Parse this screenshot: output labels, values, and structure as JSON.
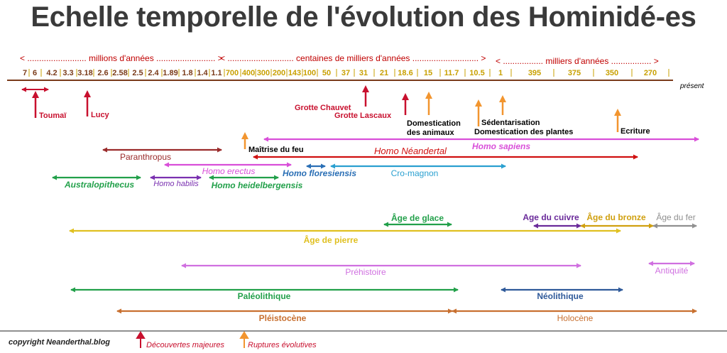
{
  "title": "Echelle temporelle de l'évolution des Hominidé-es",
  "scale_headers": [
    {
      "text": "< ......................... millions d'années ......................... >",
      "color": "#c00000"
    },
    {
      "text": "< ............................ centaines de milliers d'années ............................ >",
      "color": "#c00000"
    },
    {
      "text": "< ................. milliers d'années ................. >",
      "color": "#c00000"
    }
  ],
  "ticks_millions": [
    "7",
    "6",
    "4.2",
    "3.3",
    "3.18",
    "2.6",
    "2.58",
    "2.5",
    "2.4",
    "1.89",
    "1.8",
    "1.4",
    "1.1"
  ],
  "ticks_hundreds_thousands": [
    "700",
    "400",
    "300",
    "200",
    "143",
    "100",
    "50",
    "37",
    "31",
    "21",
    "18.6",
    "15",
    "11.7",
    "10.5",
    "1"
  ],
  "ticks_thousands": [
    "395",
    "375",
    "350",
    "270"
  ],
  "present_label": "présent",
  "colors": {
    "discovery": "#c8102e",
    "rupture": "#f2952f",
    "millions_ticks": "#7a3b1a",
    "later_ticks": "#c8a000"
  },
  "discoveries": [
    {
      "label": "Toumaï"
    },
    {
      "label": "Lucy"
    },
    {
      "label": "Grotte Chauvet"
    },
    {
      "label": "Grotte Lascaux"
    }
  ],
  "ruptures": [
    {
      "label": "Maîtrise du feu"
    },
    {
      "label": "Domestication des animaux"
    },
    {
      "label": "Domestication des plantes"
    },
    {
      "label": "Sédentarisation"
    },
    {
      "label": "Ecriture"
    }
  ],
  "species": [
    {
      "label": "Homo sapiens",
      "color": "#d94fd9"
    },
    {
      "label": "Paranthropus",
      "color": "#9a2b2b"
    },
    {
      "label": "Homo Néandertal",
      "color": "#d01010"
    },
    {
      "label": "Homo erectus",
      "color": "#d94fd9"
    },
    {
      "label": "Homo floresiensis",
      "color": "#2a6fb5"
    },
    {
      "label": "Cro-magnon",
      "color": "#2aa0d0"
    },
    {
      "label": "Australopithecus",
      "color": "#22a04a"
    },
    {
      "label": "Homo habilis",
      "color": "#7a30b0"
    },
    {
      "label": "Homo heidelbergensis",
      "color": "#22a04a"
    }
  ],
  "periods": [
    {
      "label": "Âge de glace",
      "color": "#22a04a"
    },
    {
      "label": "Age du cuivre",
      "color": "#6a2a9a"
    },
    {
      "label": "Âge du bronze",
      "color": "#d0a010"
    },
    {
      "label": "Âge du fer",
      "color": "#909090"
    },
    {
      "label": "Âge de pierre",
      "color": "#e0c020"
    },
    {
      "label": "Préhistoire",
      "color": "#d070e0"
    },
    {
      "label": "Antiquité",
      "color": "#d070e0"
    },
    {
      "label": "Paléolithique",
      "color": "#22a04a"
    },
    {
      "label": "Néolithique",
      "color": "#2f5a9a"
    },
    {
      "label": "Pléistocène",
      "color": "#c87030"
    },
    {
      "label": "Holocène",
      "color": "#c87030"
    }
  ],
  "footer": {
    "copyright": "copyright Neanderthal.blog",
    "legend_discoveries": "Découvertes majeures",
    "legend_ruptures": "Ruptures évolutives"
  }
}
